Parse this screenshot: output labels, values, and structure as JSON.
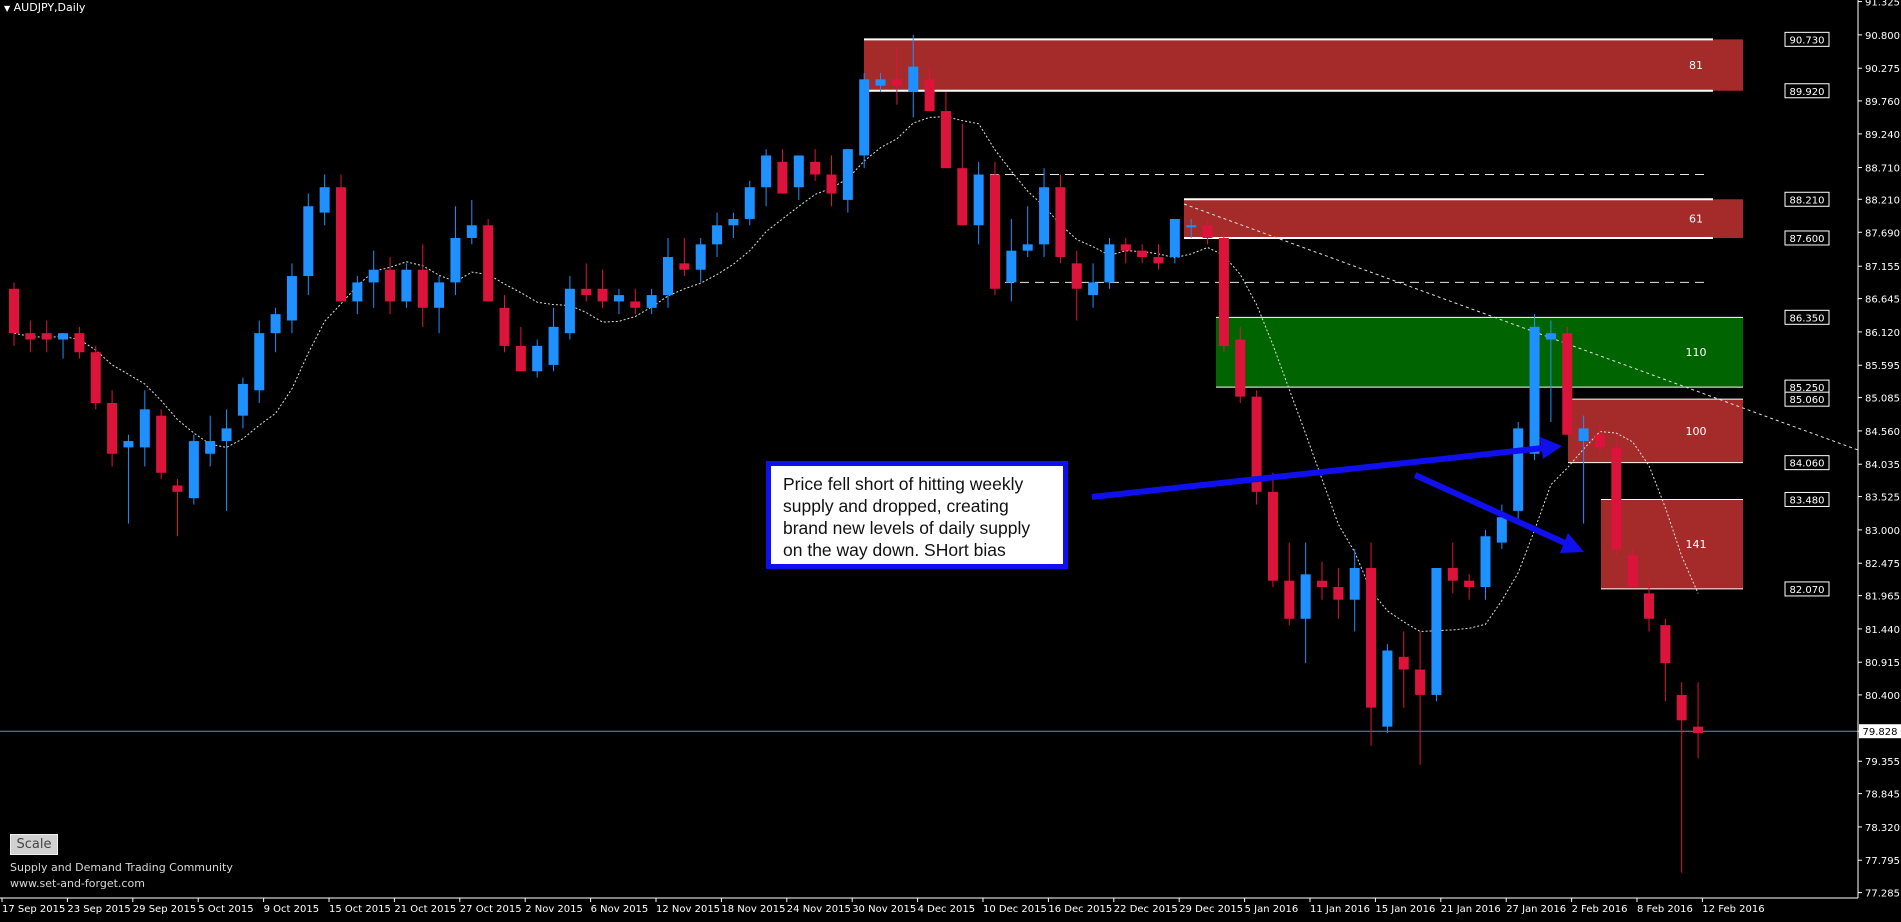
{
  "chart_data": {
    "type": "candlestick",
    "title": "AUDJPY,Daily",
    "ylim": [
      77.2,
      91.35
    ],
    "y_ticks": [
      "91.325",
      "90.800",
      "90.275",
      "89.760",
      "89.240",
      "88.710",
      "88.210",
      "87.690",
      "87.155",
      "86.645",
      "86.120",
      "85.595",
      "85.085",
      "84.560",
      "84.035",
      "83.525",
      "83.000",
      "82.475",
      "81.965",
      "81.440",
      "80.915",
      "80.400",
      "79.828",
      "79.355",
      "78.845",
      "78.320",
      "77.795",
      "77.285"
    ],
    "x_labels": [
      "17 Sep 2015",
      "23 Sep 2015",
      "29 Sep 2015",
      "5 Oct 2015",
      "9 Oct 2015",
      "15 Oct 2015",
      "21 Oct 2015",
      "27 Oct 2015",
      "2 Nov 2015",
      "6 Nov 2015",
      "12 Nov 2015",
      "18 Nov 2015",
      "24 Nov 2015",
      "30 Nov 2015",
      "4 Dec 2015",
      "10 Dec 2015",
      "16 Dec 2015",
      "22 Dec 2015",
      "29 Dec 2015",
      "5 Jan 2016",
      "11 Jan 2016",
      "15 Jan 2016",
      "21 Jan 2016",
      "27 Jan 2016",
      "2 Feb 2016",
      "8 Feb 2016",
      "12 Feb 2016"
    ],
    "candles": [
      [
        86.8,
        86.9,
        85.9,
        86.1
      ],
      [
        86.1,
        86.3,
        85.8,
        86.0
      ],
      [
        86.1,
        86.3,
        85.8,
        86.0
      ],
      [
        86.0,
        86.1,
        85.7,
        86.1
      ],
      [
        86.1,
        86.2,
        85.7,
        85.8
      ],
      [
        85.8,
        85.9,
        84.9,
        85.0
      ],
      [
        85.0,
        85.2,
        84.0,
        84.2
      ],
      [
        84.3,
        84.5,
        83.1,
        84.4
      ],
      [
        84.3,
        85.2,
        84.0,
        84.9
      ],
      [
        84.8,
        84.9,
        83.8,
        83.9
      ],
      [
        83.7,
        83.8,
        82.9,
        83.6
      ],
      [
        83.5,
        84.5,
        83.4,
        84.4
      ],
      [
        84.2,
        84.8,
        84.0,
        84.4
      ],
      [
        84.4,
        84.9,
        83.3,
        84.6
      ],
      [
        84.8,
        85.4,
        84.6,
        85.3
      ],
      [
        85.2,
        86.3,
        85.0,
        86.1
      ],
      [
        86.1,
        86.5,
        85.8,
        86.4
      ],
      [
        86.3,
        87.2,
        86.1,
        87.0
      ],
      [
        87.0,
        88.3,
        86.7,
        88.1
      ],
      [
        88.0,
        88.6,
        87.8,
        88.4
      ],
      [
        88.4,
        88.6,
        86.6,
        86.6
      ],
      [
        86.6,
        87.0,
        86.4,
        86.9
      ],
      [
        86.9,
        87.4,
        86.5,
        87.1
      ],
      [
        87.1,
        87.3,
        86.4,
        86.6
      ],
      [
        86.6,
        87.2,
        86.5,
        87.1
      ],
      [
        87.1,
        87.5,
        86.2,
        86.5
      ],
      [
        86.5,
        87.0,
        86.1,
        86.9
      ],
      [
        86.9,
        88.1,
        86.7,
        87.6
      ],
      [
        87.6,
        88.2,
        87.5,
        87.8
      ],
      [
        87.8,
        87.9,
        86.6,
        86.6
      ],
      [
        86.5,
        86.7,
        85.8,
        85.9
      ],
      [
        85.9,
        86.2,
        85.5,
        85.5
      ],
      [
        85.5,
        86.0,
        85.4,
        85.9
      ],
      [
        85.6,
        86.5,
        85.5,
        86.2
      ],
      [
        86.1,
        87.0,
        86.0,
        86.8
      ],
      [
        86.8,
        87.2,
        86.6,
        86.7
      ],
      [
        86.8,
        87.1,
        86.5,
        86.6
      ],
      [
        86.6,
        86.8,
        86.4,
        86.7
      ],
      [
        86.6,
        86.8,
        86.4,
        86.5
      ],
      [
        86.5,
        86.8,
        86.4,
        86.7
      ],
      [
        86.7,
        87.6,
        86.5,
        87.3
      ],
      [
        87.2,
        87.6,
        87.0,
        87.1
      ],
      [
        87.1,
        87.6,
        86.9,
        87.5
      ],
      [
        87.5,
        88.0,
        87.3,
        87.8
      ],
      [
        87.8,
        88.0,
        87.6,
        87.9
      ],
      [
        87.9,
        88.5,
        87.8,
        88.4
      ],
      [
        88.4,
        89.0,
        88.1,
        88.9
      ],
      [
        88.8,
        89.0,
        88.3,
        88.3
      ],
      [
        88.4,
        88.9,
        88.2,
        88.9
      ],
      [
        88.8,
        89.0,
        88.5,
        88.6
      ],
      [
        88.6,
        88.9,
        88.1,
        88.3
      ],
      [
        88.2,
        89.0,
        88.0,
        89.0
      ],
      [
        88.9,
        90.2,
        88.7,
        90.1
      ],
      [
        90.0,
        90.2,
        89.9,
        90.1
      ],
      [
        90.1,
        90.6,
        89.7,
        90.0
      ],
      [
        89.9,
        90.8,
        89.5,
        90.3
      ],
      [
        90.1,
        90.3,
        89.6,
        89.6
      ],
      [
        89.6,
        89.9,
        88.7,
        88.7
      ],
      [
        88.7,
        89.4,
        87.8,
        87.8
      ],
      [
        87.8,
        88.8,
        87.5,
        88.6
      ],
      [
        88.6,
        88.8,
        86.7,
        86.8
      ],
      [
        86.9,
        87.9,
        86.6,
        87.4
      ],
      [
        87.4,
        88.1,
        87.3,
        87.5
      ],
      [
        87.5,
        88.7,
        87.3,
        88.4
      ],
      [
        88.4,
        88.6,
        87.2,
        87.3
      ],
      [
        87.2,
        87.4,
        86.3,
        86.8
      ],
      [
        86.7,
        87.2,
        86.5,
        86.9
      ],
      [
        86.9,
        87.6,
        86.8,
        87.5
      ],
      [
        87.5,
        87.6,
        87.2,
        87.4
      ],
      [
        87.4,
        87.5,
        87.2,
        87.3
      ],
      [
        87.3,
        87.5,
        87.1,
        87.2
      ],
      [
        87.3,
        87.9,
        87.2,
        87.9
      ],
      [
        87.8,
        87.9,
        87.6,
        87.8
      ],
      [
        87.8,
        87.9,
        87.5,
        87.6
      ],
      [
        87.6,
        87.7,
        85.8,
        85.9
      ],
      [
        86.0,
        86.2,
        85.0,
        85.1
      ],
      [
        85.1,
        85.2,
        83.4,
        83.6
      ],
      [
        83.6,
        83.9,
        82.1,
        82.2
      ],
      [
        82.2,
        82.8,
        81.5,
        81.6
      ],
      [
        81.6,
        82.8,
        80.9,
        82.3
      ],
      [
        82.2,
        82.5,
        81.9,
        82.1
      ],
      [
        82.1,
        82.4,
        81.6,
        81.9
      ],
      [
        81.9,
        82.7,
        81.4,
        82.4
      ],
      [
        82.4,
        82.8,
        79.6,
        80.2
      ],
      [
        79.9,
        81.2,
        79.8,
        81.1
      ],
      [
        81.0,
        81.4,
        80.2,
        80.8
      ],
      [
        80.8,
        81.4,
        79.3,
        80.4
      ],
      [
        80.4,
        82.4,
        80.3,
        82.4
      ],
      [
        82.4,
        82.8,
        82.0,
        82.2
      ],
      [
        82.2,
        82.3,
        81.9,
        82.1
      ],
      [
        82.1,
        83.0,
        81.9,
        82.9
      ],
      [
        82.8,
        83.4,
        82.7,
        83.2
      ],
      [
        83.3,
        84.7,
        83.1,
        84.6
      ],
      [
        84.2,
        86.4,
        84.1,
        86.2
      ],
      [
        86.0,
        86.3,
        84.7,
        86.1
      ],
      [
        86.1,
        86.2,
        84.5,
        84.5
      ],
      [
        84.4,
        84.8,
        83.1,
        84.6
      ],
      [
        84.5,
        84.7,
        84.2,
        84.3
      ],
      [
        84.3,
        84.5,
        82.6,
        82.7
      ],
      [
        82.6,
        82.7,
        82.1,
        82.1
      ],
      [
        82.0,
        82.2,
        81.4,
        81.6
      ],
      [
        81.5,
        81.6,
        80.3,
        80.9
      ],
      [
        80.4,
        80.6,
        77.6,
        80.0
      ],
      [
        79.9,
        80.6,
        79.4,
        79.8
      ]
    ],
    "zones": [
      {
        "label": "81",
        "top": 90.73,
        "bottom": 89.92,
        "color": "#a52a2a"
      },
      {
        "label": "61",
        "top": 88.21,
        "bottom": 87.6,
        "color": "#a52a2a"
      },
      {
        "label": "110",
        "top": 86.35,
        "bottom": 85.25,
        "color": "#006400"
      },
      {
        "label": "100",
        "top": 85.06,
        "bottom": 84.06,
        "color": "#a52a2a"
      },
      {
        "label": "141",
        "top": 83.48,
        "bottom": 82.07,
        "color": "#a52a2a"
      }
    ],
    "price_labels": [
      "90.730",
      "89.920",
      "88.210",
      "87.600",
      "86.350",
      "85.250",
      "85.060",
      "84.060",
      "83.480",
      "82.070"
    ],
    "current_price": "79.828",
    "bull_color": "#1e90ff",
    "bear_color": "#dc143c",
    "annotation": "Price fell short of hitting weekly supply and dropped, creating brand new levels of daily supply on the way down. SHort bias",
    "annotation_color": "#1010ee"
  },
  "controls": {
    "scale_label": "Scale"
  },
  "footer": {
    "community": "Supply and Demand Trading Community",
    "website": "www.set-and-forget.com"
  }
}
